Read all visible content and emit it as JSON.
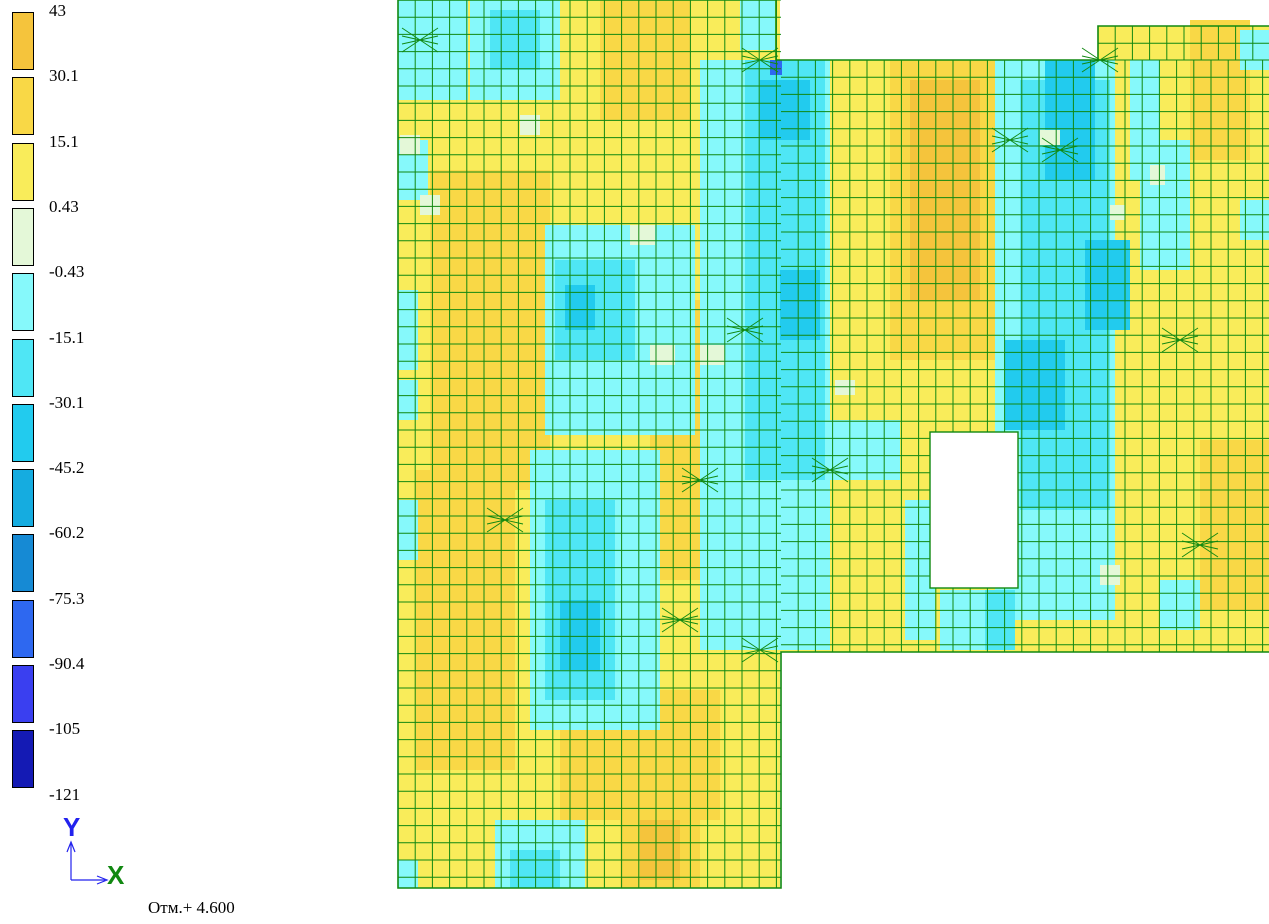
{
  "legend": {
    "labels": [
      "43",
      "30.1",
      "15.1",
      "0.43",
      "-0.43",
      "-15.1",
      "-30.1",
      "-45.2",
      "-60.2",
      "-75.3",
      "-90.4",
      "-105",
      "-121"
    ],
    "colors": [
      "#f5c43c",
      "#f9d846",
      "#f9ec5a",
      "#e4f8d8",
      "#86f9fb",
      "#4fe6f5",
      "#22cbee",
      "#15ace0",
      "#168ad4",
      "#2e68f0",
      "#3a3ff0",
      "#141ab4"
    ]
  },
  "axes": {
    "y_label": "Y",
    "x_label": "X",
    "y_color": "#2222ee",
    "x_color": "#118811"
  },
  "elevation_label": "Отм.+ 4.600",
  "mesh": {
    "line_color": "#118811",
    "palette": {
      "o": "#f5c43c",
      "y": "#f9d846",
      "l": "#f9ec5a",
      "w": "#e4f8d8",
      "c": "#86f9fb",
      "s": "#4fe6f5",
      "b": "#22cbee",
      "m": "#15ace0",
      "d": "#2e68f0"
    }
  }
}
